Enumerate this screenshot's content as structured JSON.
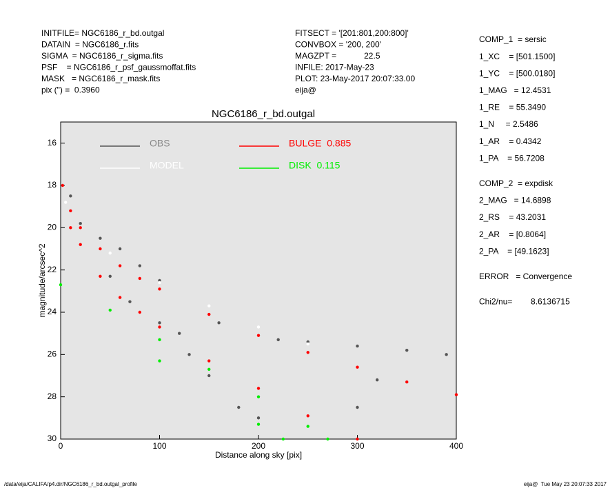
{
  "header": {
    "left": [
      "INITFILE= NGC6186_r_bd.outgal",
      "DATAIN  = NGC6186_r.fits",
      "SIGMA  = NGC6186_r_sigma.fits",
      "PSF    = NGC6186_r_psf_gaussmoffat.fits",
      "MASK   = NGC6186_r_mask.fits",
      "pix (\") =  0.3960"
    ],
    "middle": [
      "FITSECT = '[201:801,200:800]'",
      "CONVBOX = '200, 200'",
      "MAGZPT =            22.5",
      "INFILE: 2017-May-23",
      "PLOT: 23-May-2017 20:07:33.00",
      "eija@"
    ]
  },
  "params": [
    "COMP_1  = sersic",
    "1_XC    = [501.1500]",
    "1_YC    = [500.0180]",
    "1_MAG   = 12.4531",
    "1_RE    = 55.3490",
    "1_N     = 2.5486",
    "1_AR    = 0.4342",
    "1_PA    = 56.7208",
    "COMP_2  = expdisk",
    "2_MAG   = 14.6898",
    "2_RS    = 43.2031",
    "2_AR    = [0.8064]",
    "2_PA    = [49.1623]",
    "ERROR   = Convergence",
    "Chi2/nu=        8.6136715"
  ],
  "footer": {
    "left": "/data/eija/CALIFA/p4.dir/NGC6186_r_bd.outgal_profile",
    "right": "eija@  Tue May 23 20:07:33 2017"
  },
  "chart_data": {
    "type": "scatter",
    "title": "NGC6186_r_bd.outgal",
    "x_label": "Distance along sky [pix]",
    "y_label": "magnitude/arcsec^2",
    "xlim": [
      0,
      400
    ],
    "xticks": [
      0,
      100,
      200,
      300,
      400
    ],
    "ylim": [
      15,
      30
    ],
    "yticks": [
      16,
      18,
      20,
      22,
      24,
      26,
      28,
      30
    ],
    "y_inverted": true,
    "background": "#e5e5e5",
    "series": [
      {
        "name": "OBS",
        "color": "#555555",
        "x": [
          10,
          20,
          40,
          60,
          80,
          100,
          50,
          70,
          100,
          120,
          130,
          150,
          160,
          180,
          200,
          220,
          250,
          300,
          350,
          390,
          320,
          300
        ],
        "values": [
          18.5,
          19.8,
          20.5,
          21.0,
          21.8,
          22.5,
          22.3,
          23.5,
          24.5,
          25.0,
          26.0,
          27.0,
          24.5,
          28.5,
          29.0,
          25.3,
          25.4,
          25.6,
          25.8,
          26.0,
          27.2,
          28.5
        ]
      },
      {
        "name": "MODEL",
        "color": "#ffffff",
        "x": [
          5,
          20,
          50,
          100,
          150,
          200,
          250
        ],
        "values": [
          18.8,
          20.0,
          21.2,
          22.6,
          23.7,
          24.7,
          25.5
        ]
      },
      {
        "name": "BULGE  0.885",
        "color": "#ff0000",
        "x": [
          2,
          10,
          20,
          40,
          60,
          80,
          100,
          150,
          200,
          250,
          300,
          350,
          400,
          10,
          20,
          40,
          60,
          80,
          100,
          150,
          200,
          250,
          300
        ],
        "values": [
          18.0,
          19.2,
          20.0,
          21.0,
          21.8,
          22.4,
          22.9,
          24.1,
          25.1,
          25.9,
          26.6,
          27.3,
          27.9,
          20.0,
          20.8,
          22.3,
          23.3,
          24.0,
          24.7,
          26.3,
          27.6,
          28.9,
          30.0
        ]
      },
      {
        "name": "DISK  0.115",
        "color": "#00ee00",
        "x": [
          0,
          50,
          100,
          150,
          200,
          250,
          270,
          100,
          200,
          225
        ],
        "values": [
          22.7,
          23.9,
          25.3,
          26.7,
          28.0,
          29.4,
          30.0,
          26.3,
          29.3,
          30.0
        ]
      }
    ]
  }
}
